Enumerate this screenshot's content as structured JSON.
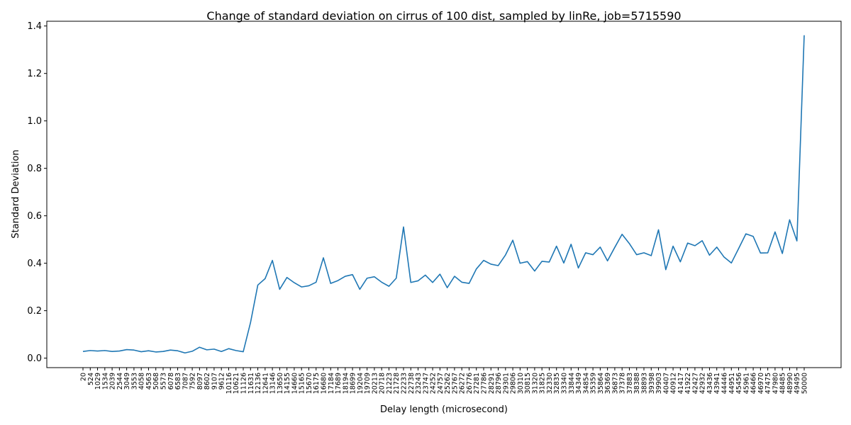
{
  "chart_data": {
    "type": "line",
    "title": "Change of standard deviation on cirrus of 100 dist, sampled by linRe, job=5715590",
    "xlabel": "Delay length (microsecond)",
    "ylabel": "Standard Deviation",
    "ylim": [
      -0.04,
      1.42
    ],
    "yticks": [
      0.0,
      0.2,
      0.4,
      0.6,
      0.8,
      1.0,
      1.2,
      1.4
    ],
    "ytick_labels": [
      "0.0",
      "0.2",
      "0.4",
      "0.6",
      "0.8",
      "1.0",
      "1.2",
      "1.4"
    ],
    "grid": false,
    "line_color": "#1f77b4",
    "categories": [
      "20",
      "524",
      "1029",
      "1534",
      "2039",
      "2544",
      "3049",
      "3553",
      "4058",
      "4563",
      "5068",
      "5573",
      "6078",
      "6583",
      "7087",
      "7592",
      "8097",
      "8602",
      "9107",
      "9612",
      "10116",
      "10621",
      "11126",
      "11631",
      "12136",
      "12641",
      "13146",
      "13650",
      "14155",
      "14660",
      "15165",
      "15670",
      "16175",
      "16680",
      "17184",
      "17689",
      "18194",
      "18699",
      "19204",
      "19709",
      "20213",
      "20718",
      "21223",
      "21728",
      "22233",
      "22738",
      "23243",
      "23747",
      "24252",
      "24757",
      "25262",
      "25767",
      "26272",
      "26776",
      "27281",
      "27786",
      "28291",
      "28796",
      "29301",
      "29806",
      "30310",
      "30815",
      "31320",
      "31825",
      "32330",
      "32835",
      "33340",
      "33844",
      "34349",
      "34854",
      "35359",
      "35864",
      "36369",
      "36873",
      "37378",
      "37883",
      "38388",
      "38893",
      "39398",
      "39903",
      "40407",
      "40912",
      "41417",
      "41922",
      "42427",
      "42932",
      "43436",
      "43941",
      "44446",
      "44951",
      "45456",
      "45961",
      "46466",
      "46970",
      "47475",
      "47980",
      "48485",
      "48990",
      "49495",
      "50000"
    ],
    "values": [
      0.028,
      0.032,
      0.03,
      0.032,
      0.028,
      0.03,
      0.036,
      0.034,
      0.027,
      0.031,
      0.026,
      0.028,
      0.034,
      0.031,
      0.022,
      0.029,
      0.046,
      0.035,
      0.038,
      0.028,
      0.04,
      0.032,
      0.027,
      0.15,
      0.308,
      0.335,
      0.412,
      0.29,
      0.34,
      0.318,
      0.3,
      0.305,
      0.32,
      0.423,
      0.315,
      0.327,
      0.345,
      0.352,
      0.29,
      0.337,
      0.343,
      0.32,
      0.303,
      0.337,
      0.553,
      0.319,
      0.326,
      0.35,
      0.319,
      0.354,
      0.297,
      0.345,
      0.32,
      0.315,
      0.376,
      0.412,
      0.396,
      0.39,
      0.435,
      0.497,
      0.4,
      0.407,
      0.367,
      0.408,
      0.405,
      0.472,
      0.401,
      0.48,
      0.38,
      0.444,
      0.436,
      0.468,
      0.41,
      0.467,
      0.522,
      0.483,
      0.436,
      0.444,
      0.432,
      0.541,
      0.373,
      0.472,
      0.406,
      0.485,
      0.474,
      0.495,
      0.434,
      0.468,
      0.426,
      0.401,
      0.462,
      0.524,
      0.513,
      0.443,
      0.444,
      0.532,
      0.441,
      0.583,
      0.494,
      1.361
    ]
  }
}
